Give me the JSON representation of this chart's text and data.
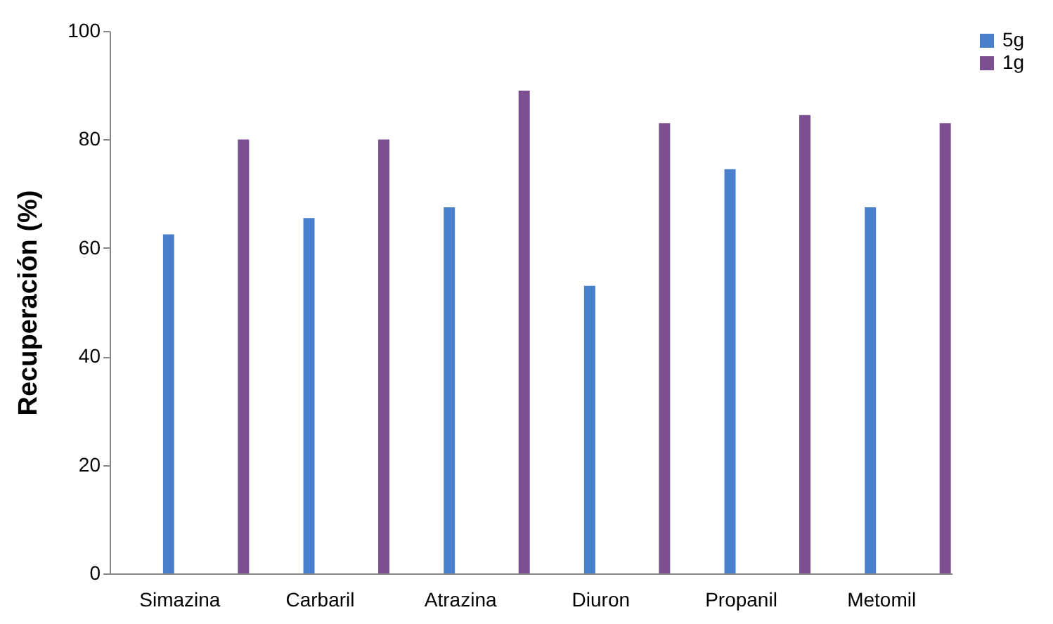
{
  "chart_data": {
    "type": "bar",
    "ylabel": "Recuperación (%)",
    "categories": [
      "Simazina",
      "Carbaril",
      "Atrazina",
      "Diuron",
      "Propanil",
      "Metomil"
    ],
    "series": [
      {
        "name": "5g",
        "color": "#4a7fcc",
        "values": [
          62.5,
          65.5,
          67.5,
          53,
          74.5,
          67.5
        ]
      },
      {
        "name": "1g",
        "color": "#7b4f90",
        "values": [
          80,
          80,
          89,
          83,
          84.5,
          83
        ]
      }
    ],
    "ylim": [
      0,
      100
    ],
    "yticks": [
      0,
      20,
      40,
      60,
      80,
      100
    ],
    "grid": false,
    "legend": "right"
  }
}
